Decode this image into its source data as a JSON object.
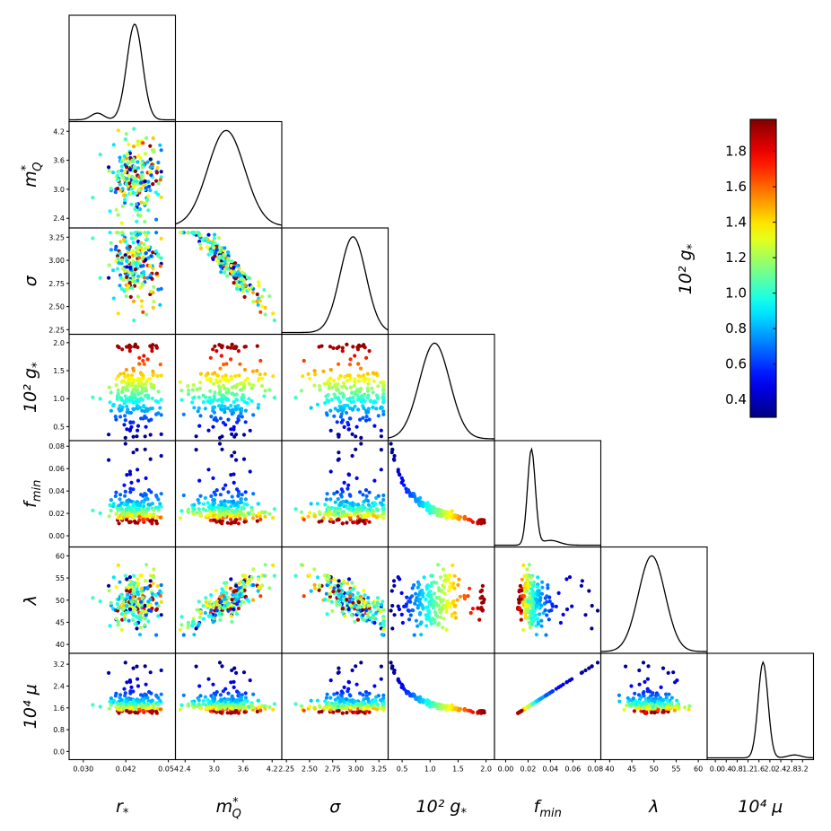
{
  "chart_data": {
    "type": "corner",
    "variables": [
      {
        "key": "r",
        "label": "r",
        "sub": "*",
        "range": [
          0.026,
          0.056
        ],
        "ticks": [
          0.03,
          0.042,
          0.054
        ],
        "tick_labels": [
          "0.030",
          "0.042",
          "0.054"
        ],
        "peak": 0.0445,
        "width": 0.0022
      },
      {
        "key": "mQ",
        "label": "m",
        "sub": "Q",
        "sup": "*",
        "range": [
          2.2,
          4.4
        ],
        "ticks": [
          2.4,
          3.0,
          3.6,
          4.2
        ],
        "tick_labels": [
          "2.4",
          "3.0",
          "3.6",
          "4.2"
        ],
        "peak": 3.25,
        "width": 0.38
      },
      {
        "key": "sigma",
        "label": "σ",
        "range": [
          2.2,
          3.35
        ],
        "ticks": [
          2.25,
          2.5,
          2.75,
          3.0,
          3.25
        ],
        "tick_labels": [
          "2.25",
          "2.50",
          "2.75",
          "3.00",
          "3.25"
        ],
        "peak": 2.97,
        "width": 0.14
      },
      {
        "key": "g",
        "label": "10² g",
        "sub": "*",
        "range": [
          0.25,
          2.15
        ],
        "ticks": [
          0.5,
          1.0,
          1.5,
          2.0
        ],
        "tick_labels": [
          "0.5",
          "1.0",
          "1.5",
          "2.0"
        ],
        "y_tick_labels": [
          "0.5",
          "1.0",
          "1.5",
          "2.0"
        ],
        "peak": 1.08,
        "width": 0.27
      },
      {
        "key": "fmin",
        "label": "f",
        "sub": "min",
        "range": [
          -0.01,
          0.085
        ],
        "ticks": [
          0.0,
          0.02,
          0.04,
          0.06,
          0.08
        ],
        "tick_labels": [
          "0.00",
          "0.02",
          "0.04",
          "0.06",
          "0.08"
        ],
        "peak": 0.023,
        "width": 0.0035
      },
      {
        "key": "lambda",
        "label": "λ",
        "range": [
          38,
          62
        ],
        "ticks": [
          40,
          45,
          50,
          55,
          60
        ],
        "tick_labels": [
          "40",
          "45",
          "50",
          "55",
          "60"
        ],
        "peak": 49.5,
        "width": 3.0
      },
      {
        "key": "mu",
        "label": "10⁴ μ",
        "range": [
          -0.3,
          3.6
        ],
        "ticks": [
          0.0,
          0.8,
          1.6,
          2.4,
          3.2
        ],
        "tick_labels": [
          "0.0",
          "0.8",
          "1.6",
          "2.4",
          "3.2"
        ],
        "x_tick_labels": [
          "0.0",
          "0.4",
          "0.8",
          "1.2",
          "1.6",
          "2.0",
          "2.4",
          "2.8",
          "3.2"
        ],
        "x_ticks": [
          0.0,
          0.4,
          0.8,
          1.2,
          1.6,
          2.0,
          2.4,
          2.8,
          3.2
        ],
        "peak": 1.75,
        "width": 0.18
      }
    ],
    "y_tick_labels": {
      "mQ": [
        "2.4",
        "3.0",
        "3.6",
        "4.2"
      ],
      "sigma": [
        "2.25",
        "2.50",
        "2.75",
        "3.00",
        "3.25"
      ],
      "g": [
        "0.5",
        "1.0",
        "1.5",
        "2.0"
      ],
      "fmin": [
        "0.00",
        "0.02",
        "0.04",
        "0.06",
        "0.08"
      ],
      "lambda": [
        "40",
        "45",
        "50",
        "55",
        "60"
      ],
      "mu": [
        "0.0",
        "0.8",
        "1.6",
        "2.4",
        "3.2"
      ]
    },
    "axis_labels_bottom": [
      "r*",
      "m*Q",
      "σ",
      "10² g*",
      "fmin",
      "λ",
      "10⁴ μ"
    ],
    "colorbar": {
      "label": "10² g*",
      "range": [
        0.3,
        1.98
      ],
      "ticks": [
        0.4,
        0.6,
        0.8,
        1.0,
        1.2,
        1.4,
        1.6,
        1.8
      ],
      "tick_labels": [
        "0.4",
        "0.6",
        "0.8",
        "1.0",
        "1.2",
        "1.4",
        "1.6",
        "1.8"
      ],
      "colormap": "jet"
    },
    "samples": {
      "count": 220,
      "relations": "f_min ≈ 0.0245 / g ; 10^4 μ ≈ 1.12 + 26 f_min ; σ anti-correlated with m*Q ; λ correlated with m*Q",
      "color_by": "10² g*"
    }
  }
}
